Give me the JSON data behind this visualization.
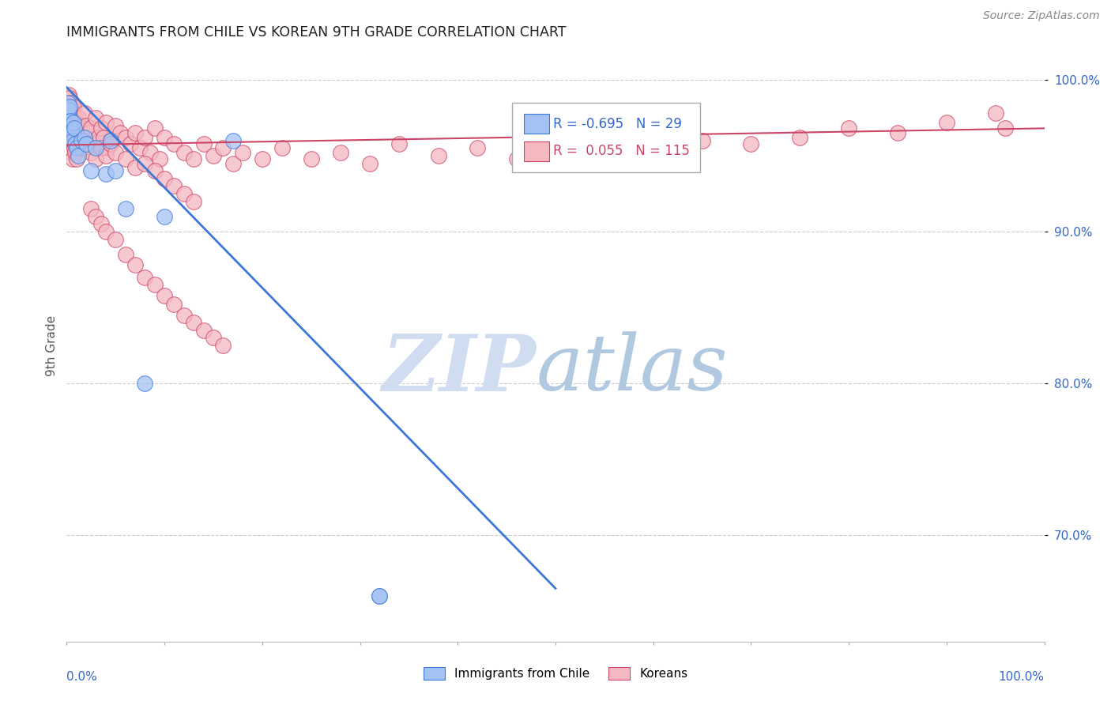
{
  "title": "IMMIGRANTS FROM CHILE VS KOREAN 9TH GRADE CORRELATION CHART",
  "source": "Source: ZipAtlas.com",
  "ylabel": "9th Grade",
  "xlim": [
    0.0,
    1.0
  ],
  "ylim": [
    0.63,
    1.02
  ],
  "legend_r_chile": "-0.695",
  "legend_n_chile": "29",
  "legend_r_korean": "0.055",
  "legend_n_korean": "115",
  "blue_color": "#a4c2f4",
  "pink_color": "#f4b8c1",
  "trendline_blue": "#3c78d8",
  "trendline_pink": "#cc4466",
  "watermark_zip_color": "#d0dff0",
  "watermark_atlas_color": "#b8cce4",
  "background_color": "#ffffff",
  "grid_color": "#cccccc",
  "blue_line_x": [
    0.0,
    0.5
  ],
  "blue_line_y": [
    0.995,
    0.665
  ],
  "pink_line_x": [
    0.0,
    1.0
  ],
  "pink_line_y": [
    0.957,
    0.968
  ],
  "blue_scatter_x": [
    0.001,
    0.001,
    0.002,
    0.002,
    0.003,
    0.003,
    0.004,
    0.004,
    0.005,
    0.006,
    0.007,
    0.008,
    0.009,
    0.01,
    0.012,
    0.015,
    0.018,
    0.02,
    0.025,
    0.03,
    0.04,
    0.045,
    0.05,
    0.06,
    0.08,
    0.1,
    0.17,
    0.32,
    0.32
  ],
  "blue_scatter_y": [
    0.978,
    0.985,
    0.975,
    0.98,
    0.97,
    0.982,
    0.968,
    0.973,
    0.965,
    0.96,
    0.972,
    0.968,
    0.958,
    0.955,
    0.95,
    0.96,
    0.962,
    0.958,
    0.94,
    0.955,
    0.938,
    0.96,
    0.94,
    0.915,
    0.8,
    0.91,
    0.96,
    0.66,
    0.66
  ],
  "pink_scatter_x": [
    0.001,
    0.002,
    0.002,
    0.003,
    0.003,
    0.004,
    0.005,
    0.005,
    0.006,
    0.007,
    0.007,
    0.008,
    0.009,
    0.01,
    0.01,
    0.011,
    0.012,
    0.013,
    0.014,
    0.015,
    0.016,
    0.017,
    0.018,
    0.019,
    0.02,
    0.022,
    0.025,
    0.028,
    0.03,
    0.032,
    0.035,
    0.038,
    0.04,
    0.042,
    0.045,
    0.05,
    0.055,
    0.06,
    0.065,
    0.07,
    0.075,
    0.08,
    0.085,
    0.09,
    0.095,
    0.1,
    0.11,
    0.12,
    0.13,
    0.14,
    0.15,
    0.16,
    0.17,
    0.18,
    0.2,
    0.22,
    0.25,
    0.28,
    0.31,
    0.34,
    0.38,
    0.42,
    0.46,
    0.5,
    0.55,
    0.6,
    0.65,
    0.7,
    0.75,
    0.8,
    0.85,
    0.9,
    0.95,
    0.96,
    0.002,
    0.003,
    0.004,
    0.005,
    0.006,
    0.007,
    0.008,
    0.009,
    0.01,
    0.015,
    0.02,
    0.025,
    0.03,
    0.035,
    0.04,
    0.045,
    0.05,
    0.06,
    0.07,
    0.08,
    0.09,
    0.1,
    0.11,
    0.12,
    0.13,
    0.025,
    0.03,
    0.035,
    0.04,
    0.05,
    0.06,
    0.07,
    0.08,
    0.09,
    0.1,
    0.11,
    0.12,
    0.13,
    0.14,
    0.15,
    0.16
  ],
  "pink_scatter_y": [
    0.985,
    0.99,
    0.98,
    0.988,
    0.978,
    0.982,
    0.975,
    0.985,
    0.978,
    0.982,
    0.972,
    0.968,
    0.975,
    0.972,
    0.965,
    0.968,
    0.975,
    0.965,
    0.962,
    0.958,
    0.97,
    0.955,
    0.978,
    0.962,
    0.97,
    0.965,
    0.968,
    0.958,
    0.975,
    0.962,
    0.968,
    0.962,
    0.972,
    0.955,
    0.96,
    0.97,
    0.965,
    0.962,
    0.958,
    0.965,
    0.955,
    0.962,
    0.952,
    0.968,
    0.948,
    0.962,
    0.958,
    0.952,
    0.948,
    0.958,
    0.95,
    0.955,
    0.945,
    0.952,
    0.948,
    0.955,
    0.948,
    0.952,
    0.945,
    0.958,
    0.95,
    0.955,
    0.948,
    0.952,
    0.948,
    0.955,
    0.96,
    0.958,
    0.962,
    0.968,
    0.965,
    0.972,
    0.978,
    0.968,
    0.96,
    0.958,
    0.955,
    0.952,
    0.948,
    0.958,
    0.955,
    0.952,
    0.948,
    0.955,
    0.958,
    0.952,
    0.948,
    0.955,
    0.95,
    0.958,
    0.952,
    0.948,
    0.942,
    0.945,
    0.94,
    0.935,
    0.93,
    0.925,
    0.92,
    0.915,
    0.91,
    0.905,
    0.9,
    0.895,
    0.885,
    0.878,
    0.87,
    0.865,
    0.858,
    0.852,
    0.845,
    0.84,
    0.835,
    0.83,
    0.825
  ]
}
